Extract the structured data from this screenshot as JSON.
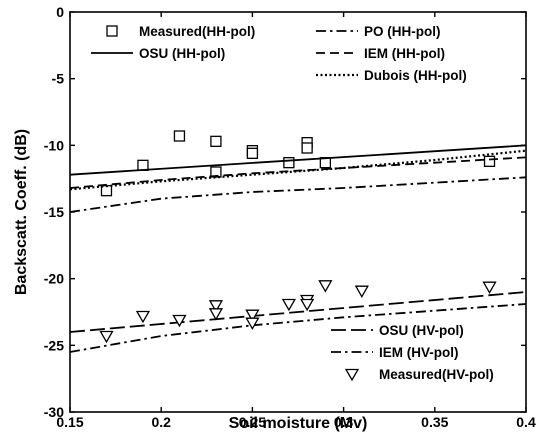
{
  "chart_data": {
    "type": "line",
    "xlabel": "Soil moisture (Mv)",
    "ylabel": "Backscatt. Coeff. (dB)",
    "xlim": [
      0.15,
      0.4
    ],
    "ylim": [
      -30,
      0
    ],
    "xticks": [
      0.15,
      0.2,
      0.25,
      0.3,
      0.35,
      0.4
    ],
    "xtick_labels": [
      "0.15",
      "0.2",
      "0.25",
      "0.3",
      "0.35",
      "0.4"
    ],
    "yticks": [
      -30,
      -25,
      -20,
      -15,
      -10,
      -5,
      0
    ],
    "ytick_labels": [
      "-30",
      "-25",
      "-20",
      "-15",
      "-10",
      "-5",
      "0"
    ],
    "grid": false,
    "legend_placement": [
      "top",
      "bottom-right"
    ],
    "series": [
      {
        "name": "Measured(HH-pol)",
        "kind": "marker",
        "marker": "square",
        "x": [
          0.17,
          0.19,
          0.21,
          0.23,
          0.23,
          0.25,
          0.25,
          0.27,
          0.28,
          0.28,
          0.29,
          0.38
        ],
        "y": [
          -13.4,
          -11.5,
          -9.3,
          -9.7,
          -12.0,
          -10.4,
          -10.6,
          -11.3,
          -9.8,
          -10.2,
          -11.3,
          -11.2
        ]
      },
      {
        "name": "OSU (HH-pol)",
        "kind": "line",
        "style": "solid",
        "x": [
          0.15,
          0.4
        ],
        "y": [
          -12.2,
          -10.0
        ]
      },
      {
        "name": "PO (HH-pol)",
        "kind": "line",
        "style": "dashdot",
        "x": [
          0.15,
          0.2,
          0.25,
          0.3,
          0.35,
          0.4
        ],
        "y": [
          -15.0,
          -14.0,
          -13.5,
          -13.2,
          -12.8,
          -12.4
        ]
      },
      {
        "name": "IEM (HH-pol)",
        "kind": "line",
        "style": "dashed",
        "x": [
          0.15,
          0.2,
          0.25,
          0.3,
          0.35,
          0.4
        ],
        "y": [
          -13.2,
          -12.6,
          -12.1,
          -11.7,
          -11.3,
          -10.9
        ]
      },
      {
        "name": "Dubois (HH-pol)",
        "kind": "line",
        "style": "dotted",
        "x": [
          0.15,
          0.2,
          0.25,
          0.3,
          0.35,
          0.4
        ],
        "y": [
          -13.3,
          -12.7,
          -12.2,
          -11.7,
          -11.1,
          -10.4
        ]
      },
      {
        "name": "OSU (HV-pol)",
        "kind": "line",
        "style": "longdash",
        "x": [
          0.15,
          0.4
        ],
        "y": [
          -24.0,
          -21.0
        ]
      },
      {
        "name": "IEM (HV-pol)",
        "kind": "line",
        "style": "dashdot",
        "x": [
          0.15,
          0.2,
          0.25,
          0.3,
          0.35,
          0.4
        ],
        "y": [
          -25.5,
          -24.3,
          -23.5,
          -22.9,
          -22.4,
          -21.9
        ]
      },
      {
        "name": "Measured(HV-pol)",
        "kind": "marker",
        "marker": "triangle-down",
        "x": [
          0.17,
          0.19,
          0.21,
          0.23,
          0.23,
          0.25,
          0.25,
          0.27,
          0.28,
          0.28,
          0.29,
          0.31,
          0.38
        ],
        "y": [
          -24.3,
          -22.8,
          -23.1,
          -22.0,
          -22.6,
          -22.7,
          -23.3,
          -21.9,
          -21.6,
          -21.9,
          -20.5,
          -20.9,
          -20.6
        ]
      }
    ]
  }
}
